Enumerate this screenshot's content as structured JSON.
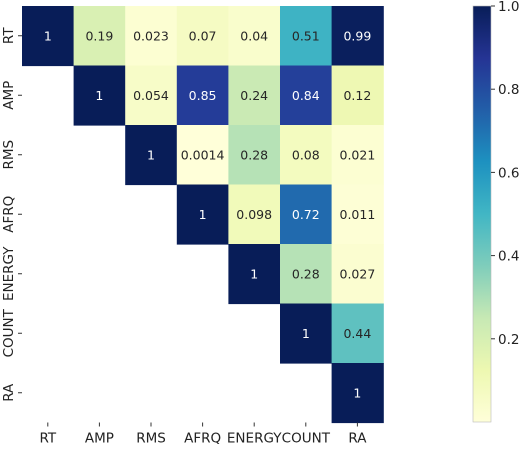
{
  "chart_data": {
    "type": "heatmap",
    "title": "",
    "xlabel": "",
    "ylabel": "",
    "labels": [
      "RT",
      "AMP",
      "RMS",
      "AFRQ",
      "ENERGY",
      "COUNT",
      "RA"
    ],
    "triangle": "upper",
    "matrix": [
      [
        1,
        0.19,
        0.023,
        0.07,
        0.04,
        0.51,
        0.99
      ],
      [
        null,
        1,
        0.054,
        0.85,
        0.24,
        0.84,
        0.12
      ],
      [
        null,
        null,
        1,
        0.0014,
        0.28,
        0.08,
        0.021
      ],
      [
        null,
        null,
        null,
        1,
        0.098,
        0.72,
        0.011
      ],
      [
        null,
        null,
        null,
        null,
        1,
        0.28,
        0.027
      ],
      [
        null,
        null,
        null,
        null,
        null,
        1,
        0.44
      ],
      [
        null,
        null,
        null,
        null,
        null,
        null,
        1
      ]
    ],
    "cell_text": [
      [
        "1",
        "0.19",
        "0.023",
        "0.07",
        "0.04",
        "0.51",
        "0.99"
      ],
      [
        null,
        "1",
        "0.054",
        "0.85",
        "0.24",
        "0.84",
        "0.12"
      ],
      [
        null,
        null,
        "1",
        "0.0014",
        "0.28",
        "0.08",
        "0.021"
      ],
      [
        null,
        null,
        null,
        "1",
        "0.098",
        "0.72",
        "0.011"
      ],
      [
        null,
        null,
        null,
        null,
        "1",
        "0.28",
        "0.027"
      ],
      [
        null,
        null,
        null,
        null,
        null,
        "1",
        "0.44"
      ],
      [
        null,
        null,
        null,
        null,
        null,
        null,
        "1"
      ]
    ],
    "colormap": "YlGnBu",
    "vmin": 0,
    "vmax": 1,
    "colorbar": {
      "placement": "right",
      "ticks": [
        0.2,
        0.4,
        0.6,
        0.8,
        1.0
      ],
      "tick_labels": [
        "0.2",
        "0.4",
        "0.6",
        "0.8",
        "1.0"
      ]
    }
  }
}
